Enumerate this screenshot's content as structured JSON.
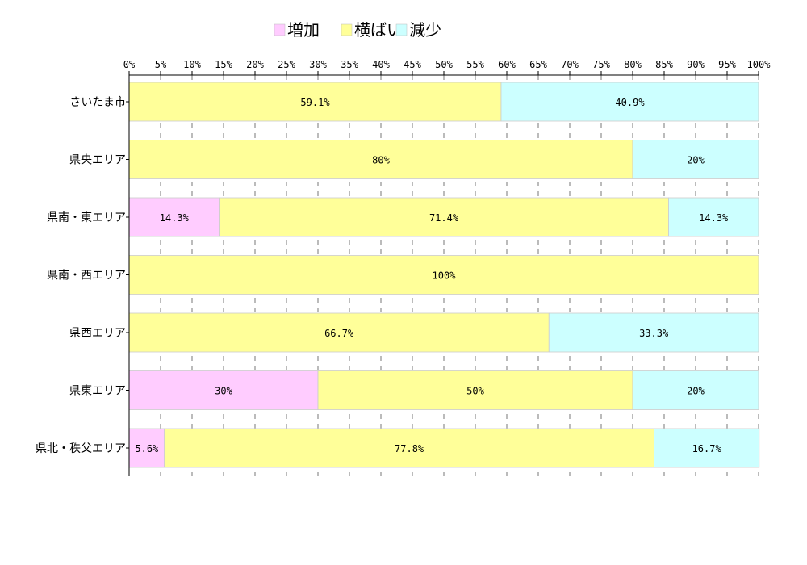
{
  "chart_data": {
    "type": "bar",
    "orientation": "horizontal",
    "stacked": "percent",
    "title": "",
    "xlabel": "",
    "ylabel": "",
    "xlim": [
      0,
      100
    ],
    "x_ticks": [
      "0%",
      "5%",
      "10%",
      "15%",
      "20%",
      "25%",
      "30%",
      "35%",
      "40%",
      "45%",
      "50%",
      "55%",
      "60%",
      "65%",
      "70%",
      "75%",
      "80%",
      "85%",
      "90%",
      "95%",
      "100%"
    ],
    "grid": "vertical-dashed",
    "legend_position": "top",
    "categories": [
      "さいたま市",
      "県央エリア",
      "県南・東エリア",
      "県南・西エリア",
      "県西エリア",
      "県東エリア",
      "県北・秩父エリア"
    ],
    "series": [
      {
        "name": "増加",
        "color": "#ffccff",
        "values": [
          0,
          0,
          14.3,
          0,
          0,
          30,
          5.6
        ],
        "labels": [
          "",
          "",
          "14.3%",
          "",
          "",
          "30%",
          "5.6%"
        ]
      },
      {
        "name": "横ばい",
        "color": "#ffff99",
        "values": [
          59.1,
          80,
          71.4,
          100,
          66.7,
          50,
          77.8
        ],
        "labels": [
          "59.1%",
          "80%",
          "71.4%",
          "100%",
          "66.7%",
          "50%",
          "77.8%"
        ]
      },
      {
        "name": "減少",
        "color": "#ccffff",
        "values": [
          40.9,
          20,
          14.3,
          0,
          33.3,
          20,
          16.7
        ],
        "labels": [
          "40.9%",
          "20%",
          "14.3%",
          "",
          "33.3%",
          "20%",
          "16.7%"
        ]
      }
    ]
  }
}
